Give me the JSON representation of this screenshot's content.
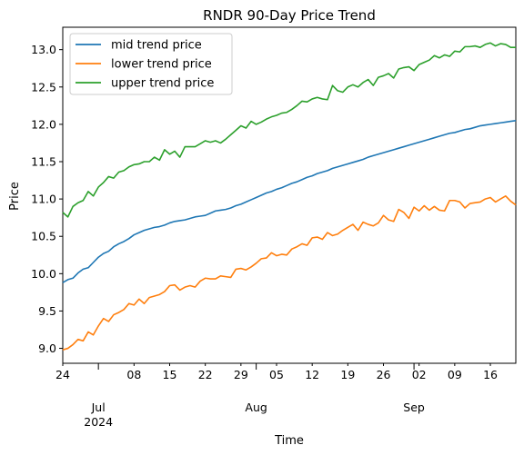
{
  "chart_data": {
    "type": "line",
    "title": "RNDR 90-Day Price Trend",
    "xlabel": "Time",
    "ylabel": "Price",
    "x_start": "2024-06-24",
    "x_end": "2024-09-21",
    "ylim": [
      8.8,
      13.3
    ],
    "y_ticks": [
      "9.0",
      "9.5",
      "10.0",
      "10.5",
      "11.0",
      "11.5",
      "12.0",
      "12.5",
      "13.0"
    ],
    "x_minor_tick_labels": [
      {
        "date": "2024-06-24",
        "label": "24"
      },
      {
        "date": "2024-07-08",
        "label": "08"
      },
      {
        "date": "2024-07-15",
        "label": "15"
      },
      {
        "date": "2024-07-22",
        "label": "22"
      },
      {
        "date": "2024-07-29",
        "label": "29"
      },
      {
        "date": "2024-08-05",
        "label": "05"
      },
      {
        "date": "2024-08-12",
        "label": "12"
      },
      {
        "date": "2024-08-19",
        "label": "19"
      },
      {
        "date": "2024-08-26",
        "label": "26"
      },
      {
        "date": "2024-09-02",
        "label": "02"
      },
      {
        "date": "2024-09-09",
        "label": "09"
      },
      {
        "date": "2024-09-16",
        "label": "16"
      }
    ],
    "x_major_tick_labels": [
      {
        "date": "2024-07-01",
        "label": "Jul",
        "sublabel": "2024"
      },
      {
        "date": "2024-08-01",
        "label": "Aug",
        "sublabel": ""
      },
      {
        "date": "2024-09-01",
        "label": "Sep",
        "sublabel": ""
      }
    ],
    "legend_position": "top-left",
    "series": [
      {
        "name": "mid trend price",
        "color": "#1f77b4",
        "values": [
          9.88,
          9.92,
          9.94,
          10.01,
          10.06,
          10.08,
          10.15,
          10.22,
          10.27,
          10.3,
          10.36,
          10.4,
          10.43,
          10.47,
          10.52,
          10.55,
          10.58,
          10.6,
          10.62,
          10.63,
          10.65,
          10.68,
          10.7,
          10.71,
          10.72,
          10.74,
          10.76,
          10.77,
          10.78,
          10.81,
          10.84,
          10.85,
          10.86,
          10.88,
          10.91,
          10.93,
          10.96,
          10.99,
          11.02,
          11.05,
          11.08,
          11.1,
          11.13,
          11.15,
          11.18,
          11.21,
          11.23,
          11.26,
          11.29,
          11.31,
          11.34,
          11.36,
          11.38,
          11.41,
          11.43,
          11.45,
          11.47,
          11.49,
          11.51,
          11.53,
          11.56,
          11.58,
          11.6,
          11.62,
          11.64,
          11.66,
          11.68,
          11.7,
          11.72,
          11.74,
          11.76,
          11.78,
          11.8,
          11.82,
          11.84,
          11.86,
          11.88,
          11.89,
          11.91,
          11.93,
          11.94,
          11.96,
          11.98,
          11.99,
          12.0,
          12.01,
          12.02,
          12.03,
          12.04,
          12.05
        ]
      },
      {
        "name": "lower trend price",
        "color": "#ff7f0e",
        "values": [
          8.98,
          9.0,
          9.05,
          9.12,
          9.1,
          9.22,
          9.18,
          9.3,
          9.4,
          9.36,
          9.45,
          9.48,
          9.52,
          9.6,
          9.58,
          9.66,
          9.6,
          9.68,
          9.7,
          9.72,
          9.76,
          9.84,
          9.85,
          9.78,
          9.82,
          9.84,
          9.82,
          9.9,
          9.94,
          9.93,
          9.93,
          9.97,
          9.96,
          9.95,
          10.06,
          10.07,
          10.05,
          10.09,
          10.14,
          10.2,
          10.21,
          10.28,
          10.24,
          10.26,
          10.25,
          10.33,
          10.36,
          10.4,
          10.38,
          10.48,
          10.49,
          10.46,
          10.55,
          10.51,
          10.53,
          10.58,
          10.62,
          10.66,
          10.58,
          10.69,
          10.66,
          10.64,
          10.68,
          10.78,
          10.72,
          10.7,
          10.86,
          10.82,
          10.74,
          10.89,
          10.84,
          10.91,
          10.85,
          10.9,
          10.85,
          10.84,
          10.98,
          10.98,
          10.96,
          10.88,
          10.94,
          10.95,
          10.96,
          11.0,
          11.02,
          10.96,
          11.0,
          11.04,
          10.97,
          10.92
        ]
      },
      {
        "name": "upper trend price",
        "color": "#2ca02c",
        "values": [
          10.82,
          10.76,
          10.9,
          10.95,
          10.98,
          11.1,
          11.04,
          11.16,
          11.22,
          11.3,
          11.28,
          11.36,
          11.38,
          11.43,
          11.46,
          11.47,
          11.5,
          11.5,
          11.56,
          11.52,
          11.66,
          11.6,
          11.64,
          11.56,
          11.7,
          11.7,
          11.7,
          11.74,
          11.78,
          11.76,
          11.78,
          11.75,
          11.8,
          11.86,
          11.92,
          11.98,
          11.95,
          12.04,
          12.0,
          12.03,
          12.07,
          12.1,
          12.12,
          12.15,
          12.16,
          12.2,
          12.25,
          12.31,
          12.3,
          12.34,
          12.36,
          12.34,
          12.33,
          12.52,
          12.45,
          12.43,
          12.5,
          12.53,
          12.5,
          12.56,
          12.6,
          12.52,
          12.63,
          12.65,
          12.68,
          12.62,
          12.74,
          12.76,
          12.77,
          12.72,
          12.8,
          12.83,
          12.86,
          12.92,
          12.89,
          12.93,
          12.91,
          12.98,
          12.97,
          13.04,
          13.04,
          13.05,
          13.03,
          13.07,
          13.09,
          13.05,
          13.08,
          13.07,
          13.03,
          13.03
        ]
      }
    ]
  }
}
